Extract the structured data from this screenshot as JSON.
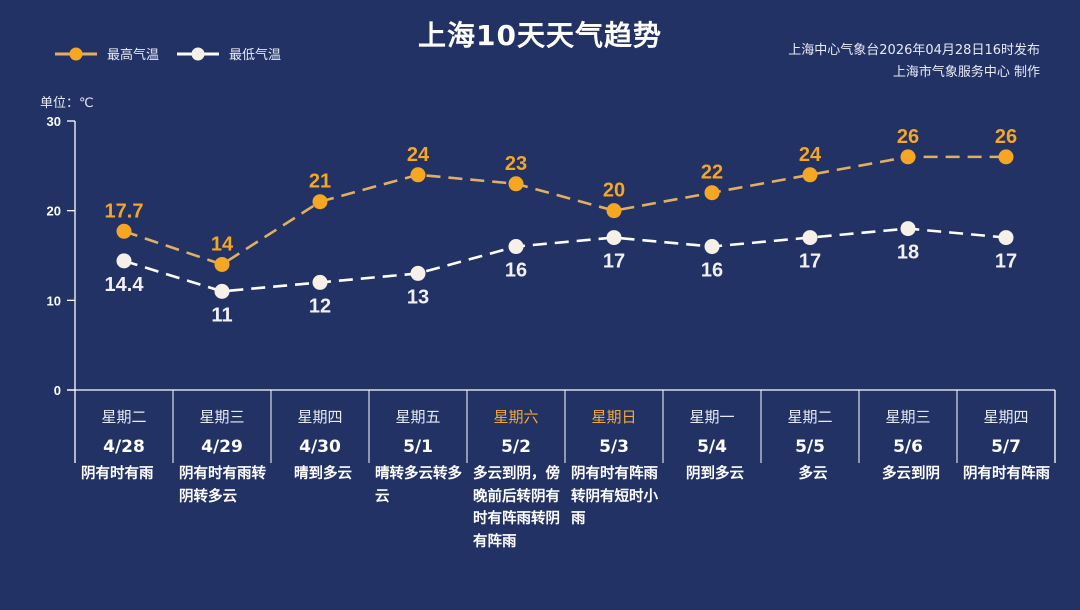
{
  "header": {
    "title": "上海10天天气趋势",
    "source_line1": "上海中心气象台2026年04月28日16时发布",
    "source_line2": "上海市气象服务中心  制作"
  },
  "legend": {
    "high_label": "最高气温",
    "low_label": "最低气温"
  },
  "axis": {
    "unit_label": "单位：℃",
    "yticks": [
      "30",
      "20",
      "10",
      "0"
    ]
  },
  "colors": {
    "background": "#233265",
    "high": "#f5a623",
    "high_line": "#e0b060",
    "low": "#f5f0e8",
    "weekend": "#f2a937"
  },
  "days": [
    {
      "weekday": "星期二",
      "date": "4/28",
      "desc": "阴有时有雨",
      "high": "17.7",
      "low": "14.4",
      "weekend": false
    },
    {
      "weekday": "星期三",
      "date": "4/29",
      "desc": "阴有时有雨转阴转多云",
      "high": "14",
      "low": "11",
      "weekend": false
    },
    {
      "weekday": "星期四",
      "date": "4/30",
      "desc": "晴到多云",
      "high": "21",
      "low": "12",
      "weekend": false
    },
    {
      "weekday": "星期五",
      "date": "5/1",
      "desc": "晴转多云转多云",
      "high": "24",
      "low": "13",
      "weekend": false
    },
    {
      "weekday": "星期六",
      "date": "5/2",
      "desc": "多云到阴，傍晚前后转阴有时有阵雨转阴有阵雨",
      "high": "23",
      "low": "16",
      "weekend": true
    },
    {
      "weekday": "星期日",
      "date": "5/3",
      "desc": "阴有时有阵雨转阴有短时小雨",
      "high": "20",
      "low": "17",
      "weekend": true
    },
    {
      "weekday": "星期一",
      "date": "5/4",
      "desc": "阴到多云",
      "high": "22",
      "low": "16",
      "weekend": false
    },
    {
      "weekday": "星期二",
      "date": "5/5",
      "desc": "多云",
      "high": "24",
      "low": "17",
      "weekend": false
    },
    {
      "weekday": "星期三",
      "date": "5/6",
      "desc": "多云到阴",
      "high": "26",
      "low": "18",
      "weekend": false
    },
    {
      "weekday": "星期四",
      "date": "5/7",
      "desc": "阴有时有阵雨",
      "high": "26",
      "low": "17",
      "weekend": false
    }
  ],
  "chart_data": {
    "type": "line",
    "title": "上海10天天气趋势",
    "xlabel": "",
    "ylabel": "单位：℃",
    "ylim": [
      0,
      30
    ],
    "yticks": [
      0,
      10,
      20,
      30
    ],
    "grid": false,
    "legend_position": "top-left",
    "categories": [
      "4/28",
      "4/29",
      "4/30",
      "5/1",
      "5/2",
      "5/3",
      "5/4",
      "5/5",
      "5/6",
      "5/7"
    ],
    "weekdays": [
      "星期二",
      "星期三",
      "星期四",
      "星期五",
      "星期六",
      "星期日",
      "星期一",
      "星期二",
      "星期三",
      "星期四"
    ],
    "series": [
      {
        "name": "最高气温",
        "values": [
          17.7,
          14,
          21,
          24,
          23,
          20,
          22,
          24,
          26,
          26
        ],
        "color": "#f5a623",
        "style": "dashed"
      },
      {
        "name": "最低气温",
        "values": [
          14.4,
          11,
          12,
          13,
          16,
          17,
          16,
          17,
          18,
          17
        ],
        "color": "#f5f0e8",
        "style": "dashed"
      }
    ],
    "annotations": [
      "上海中心气象台2026年04月28日16时发布",
      "上海市气象服务中心  制作"
    ]
  }
}
